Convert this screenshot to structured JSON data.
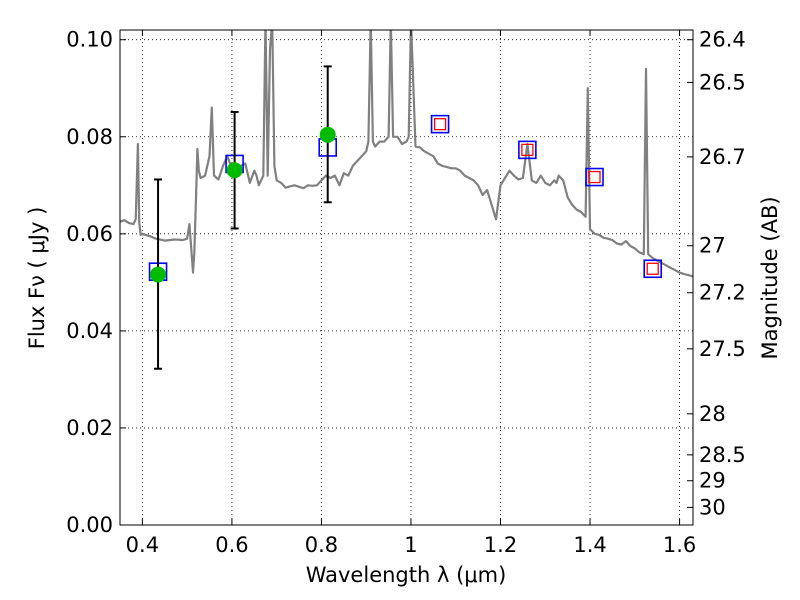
{
  "chart_data": {
    "type": "scatter",
    "xlabel": "Wavelength  λ (μm)",
    "ylabel": "Flux  Fν  ( μJy )",
    "y2label": "Magnitude (AB)",
    "xlim": [
      0.35,
      1.63
    ],
    "ylim": [
      0.0,
      0.102
    ],
    "grid": true,
    "grid_style": "dotted",
    "x_ticks": [
      0.4,
      0.6,
      0.8,
      1.0,
      1.2,
      1.4,
      1.6
    ],
    "x_tick_labels": [
      "0.4",
      "0.6",
      "0.8",
      "1",
      "1.2",
      "1.4",
      "1.6"
    ],
    "y_ticks": [
      0.0,
      0.02,
      0.04,
      0.06,
      0.08,
      0.1
    ],
    "y_tick_labels": [
      "0.00",
      "0.02",
      "0.04",
      "0.06",
      "0.08",
      "0.10"
    ],
    "y2_tick_labels": [
      "26.4",
      "26.5",
      "26.7",
      "27",
      "27.2",
      "27.5",
      "28",
      "28.5",
      "29",
      "30"
    ],
    "y2_tick_values": [
      26.4,
      26.5,
      26.7,
      27.0,
      27.2,
      27.5,
      28.0,
      28.5,
      29.0,
      30.0
    ],
    "observed": {
      "marker": "filled-circle",
      "color": "#00bb00",
      "points": [
        {
          "x": 0.435,
          "y": 0.0516,
          "ylow": 0.0322,
          "yhigh": 0.0712
        },
        {
          "x": 0.606,
          "y": 0.0731,
          "ylow": 0.0611,
          "yhigh": 0.0851
        },
        {
          "x": 0.814,
          "y": 0.0804,
          "ylow": 0.0665,
          "yhigh": 0.0945
        }
      ]
    },
    "model_photometry": {
      "marker": "open-square",
      "color": "#0000ff",
      "points": [
        {
          "x": 0.435,
          "y": 0.0522
        },
        {
          "x": 0.606,
          "y": 0.0744
        },
        {
          "x": 0.814,
          "y": 0.0778
        },
        {
          "x": 1.065,
          "y": 0.0826
        },
        {
          "x": 1.26,
          "y": 0.0773
        },
        {
          "x": 1.41,
          "y": 0.0717
        },
        {
          "x": 1.54,
          "y": 0.0528
        }
      ]
    },
    "model_photometry_inner": {
      "marker": "open-square-small",
      "color": "#ff0000",
      "points": [
        {
          "x": 1.065,
          "y": 0.0826
        },
        {
          "x": 1.26,
          "y": 0.0773
        },
        {
          "x": 1.41,
          "y": 0.0717
        },
        {
          "x": 1.54,
          "y": 0.0528
        }
      ]
    },
    "spectrum": {
      "color": "#808080",
      "x": [
        0.35,
        0.36,
        0.37,
        0.38,
        0.385,
        0.39,
        0.393,
        0.396,
        0.4,
        0.41,
        0.42,
        0.43,
        0.44,
        0.45,
        0.46,
        0.47,
        0.48,
        0.49,
        0.5,
        0.505,
        0.51,
        0.513,
        0.516,
        0.52,
        0.523,
        0.526,
        0.53,
        0.54,
        0.55,
        0.555,
        0.56,
        0.57,
        0.58,
        0.59,
        0.6,
        0.61,
        0.62,
        0.63,
        0.64,
        0.65,
        0.655,
        0.66,
        0.67,
        0.675,
        0.68,
        0.685,
        0.69,
        0.695,
        0.7,
        0.71,
        0.72,
        0.73,
        0.74,
        0.75,
        0.76,
        0.77,
        0.78,
        0.79,
        0.8,
        0.81,
        0.82,
        0.83,
        0.84,
        0.85,
        0.86,
        0.87,
        0.88,
        0.89,
        0.9,
        0.905,
        0.91,
        0.915,
        0.92,
        0.93,
        0.94,
        0.95,
        0.955,
        0.96,
        0.97,
        0.98,
        0.99,
        0.995,
        1.0,
        1.01,
        1.02,
        1.03,
        1.04,
        1.05,
        1.06,
        1.07,
        1.08,
        1.09,
        1.1,
        1.11,
        1.12,
        1.13,
        1.14,
        1.15,
        1.16,
        1.17,
        1.18,
        1.19,
        1.2,
        1.21,
        1.22,
        1.23,
        1.24,
        1.25,
        1.26,
        1.27,
        1.28,
        1.29,
        1.3,
        1.31,
        1.32,
        1.325,
        1.33,
        1.34,
        1.35,
        1.36,
        1.37,
        1.38,
        1.39,
        1.395,
        1.4,
        1.41,
        1.42,
        1.43,
        1.44,
        1.45,
        1.46,
        1.47,
        1.48,
        1.49,
        1.5,
        1.51,
        1.52,
        1.525,
        1.53,
        1.54,
        1.55,
        1.56,
        1.57,
        1.58,
        1.59,
        1.6,
        1.61,
        1.62,
        1.63
      ],
      "y": [
        0.0625,
        0.0628,
        0.0622,
        0.062,
        0.063,
        0.0785,
        0.0625,
        0.0598,
        0.06,
        0.0597,
        0.0594,
        0.059,
        0.0588,
        0.0586,
        0.0587,
        0.0588,
        0.0588,
        0.0587,
        0.059,
        0.062,
        0.056,
        0.052,
        0.056,
        0.068,
        0.0775,
        0.073,
        0.0715,
        0.072,
        0.076,
        0.086,
        0.072,
        0.0712,
        0.074,
        0.076,
        0.0735,
        0.072,
        0.074,
        0.0745,
        0.0705,
        0.073,
        0.072,
        0.07,
        0.072,
        0.104,
        0.072,
        0.098,
        0.104,
        0.074,
        0.071,
        0.0705,
        0.0695,
        0.0698,
        0.07,
        0.0697,
        0.0694,
        0.07,
        0.0699,
        0.07,
        0.071,
        0.072,
        0.0715,
        0.072,
        0.07,
        0.0725,
        0.072,
        0.074,
        0.075,
        0.076,
        0.077,
        0.079,
        0.104,
        0.079,
        0.078,
        0.079,
        0.079,
        0.08,
        0.104,
        0.08,
        0.08,
        0.0785,
        0.079,
        0.08,
        0.104,
        0.078,
        0.0778,
        0.077,
        0.0765,
        0.076,
        0.0745,
        0.074,
        0.0738,
        0.0735,
        0.0735,
        0.073,
        0.072,
        0.0715,
        0.071,
        0.07,
        0.068,
        0.069,
        0.066,
        0.063,
        0.07,
        0.0715,
        0.073,
        0.072,
        0.0712,
        0.0715,
        0.0785,
        0.071,
        0.0705,
        0.072,
        0.0705,
        0.07,
        0.071,
        0.0705,
        0.072,
        0.071,
        0.0675,
        0.066,
        0.065,
        0.0645,
        0.0635,
        0.09,
        0.061,
        0.06,
        0.0598,
        0.0592,
        0.059,
        0.0587,
        0.058,
        0.0578,
        0.0585,
        0.0575,
        0.057,
        0.0562,
        0.0558,
        0.094,
        0.0558,
        0.055,
        0.0545,
        0.054,
        0.0535,
        0.053,
        0.0525,
        0.052,
        0.0517,
        0.0515,
        0.0512
      ]
    }
  }
}
